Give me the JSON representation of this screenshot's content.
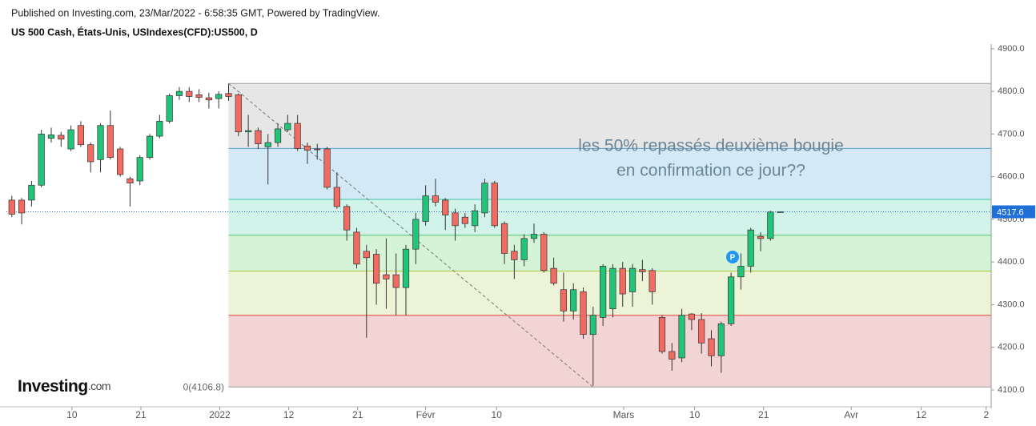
{
  "header": {
    "published": "Published on Investing.com, 23/Mar/2022 - 6:58:35 GMT, Powered by TradingView.",
    "instrument": "US 500 Cash, États-Unis, USIndexes(CFD):US500, D",
    "logo": "Investing",
    "logo_suffix": ".com"
  },
  "chart_data": {
    "type": "candlestick",
    "open": [
      4545,
      4545,
      4545,
      4580,
      4690,
      4697,
      4665,
      4720,
      4675,
      4640,
      4720,
      4665,
      4595,
      4590,
      4645,
      4695,
      4730,
      4790,
      4800,
      4792,
      4785,
      4783,
      4795,
      4792,
      4705,
      4708,
      4670,
      4680,
      4710,
      4725,
      4672,
      4665,
      4665,
      4575,
      4530,
      4470,
      4425,
      4418,
      4370,
      4370,
      4340,
      4430,
      4495,
      4555,
      4545,
      4515,
      4505,
      4485,
      4515,
      4585,
      4490,
      4425,
      4405,
      4455,
      4465,
      4385,
      4335,
      4285,
      4330,
      4230,
      4270,
      4290,
      4385,
      4330,
      4382,
      4380,
      4270,
      4190,
      4175,
      4278,
      4265,
      4220,
      4180,
      4255,
      4365,
      4390,
      4460,
      4455,
      4517.6
    ],
    "high": [
      4555,
      4550,
      4590,
      4710,
      4715,
      4705,
      4720,
      4730,
      4680,
      4725,
      4755,
      4670,
      4600,
      4650,
      4700,
      4745,
      4795,
      4810,
      4810,
      4805,
      4797,
      4800,
      4818,
      4795,
      4745,
      4715,
      4700,
      4725,
      4745,
      4745,
      4680,
      4677,
      4670,
      4610,
      4535,
      4480,
      4440,
      4430,
      4455,
      4420,
      4440,
      4515,
      4580,
      4595,
      4550,
      4525,
      4515,
      4535,
      4595,
      4590,
      4495,
      4440,
      4465,
      4490,
      4470,
      4410,
      4375,
      4350,
      4340,
      4295,
      4395,
      4395,
      4400,
      4395,
      4405,
      4385,
      4275,
      4210,
      4290,
      4280,
      4280,
      4240,
      4260,
      4375,
      4420,
      4480,
      4470,
      4520,
      4517.6
    ],
    "low": [
      4505,
      4488,
      4530,
      4575,
      4680,
      4670,
      4660,
      4670,
      4610,
      4610,
      4640,
      4600,
      4530,
      4580,
      4640,
      4690,
      4725,
      4780,
      4775,
      4775,
      4760,
      4760,
      4778,
      4695,
      4670,
      4665,
      4582,
      4670,
      4705,
      4660,
      4630,
      4640,
      4570,
      4525,
      4450,
      4385,
      4222,
      4300,
      4290,
      4275,
      4275,
      4395,
      4485,
      4530,
      4475,
      4450,
      4480,
      4470,
      4505,
      4480,
      4395,
      4360,
      4390,
      4445,
      4375,
      4345,
      4260,
      4265,
      4220,
      4110,
      4250,
      4270,
      4295,
      4295,
      4355,
      4300,
      4185,
      4145,
      4165,
      4240,
      4185,
      4155,
      4140,
      4250,
      4335,
      4375,
      4425,
      4450,
      4517.6
    ],
    "close": [
      4512,
      4515,
      4580,
      4700,
      4698,
      4688,
      4710,
      4675,
      4635,
      4720,
      4645,
      4605,
      4585,
      4645,
      4695,
      4730,
      4790,
      4800,
      4788,
      4786,
      4780,
      4793,
      4788,
      4705,
      4708,
      4677,
      4680,
      4712,
      4725,
      4666,
      4662,
      4663,
      4575,
      4530,
      4475,
      4395,
      4410,
      4350,
      4360,
      4340,
      4430,
      4500,
      4555,
      4540,
      4510,
      4485,
      4490,
      4520,
      4585,
      4485,
      4420,
      4405,
      4455,
      4465,
      4380,
      4350,
      4285,
      4335,
      4230,
      4275,
      4390,
      4385,
      4325,
      4385,
      4377,
      4330,
      4190,
      4172,
      4275,
      4265,
      4210,
      4180,
      4255,
      4365,
      4390,
      4475,
      4455,
      4517,
      4517.6
    ],
    "up_color": "#22c47a",
    "down_color": "#f26b62",
    "xlim": [
      -1.2,
      99.4
    ],
    "xticks": [
      {
        "value": 6.1,
        "label": "10"
      },
      {
        "value": 13.1,
        "label": "21"
      },
      {
        "value": 21.1,
        "label": "2022"
      },
      {
        "value": 28.1,
        "label": "12"
      },
      {
        "value": 35.1,
        "label": "21"
      },
      {
        "value": 42.0,
        "label": "Févr"
      },
      {
        "value": 49.2,
        "label": "10"
      },
      {
        "value": 62.1,
        "label": "Mars"
      },
      {
        "value": 69.3,
        "label": "10"
      },
      {
        "value": 76.3,
        "label": "21"
      },
      {
        "value": 85.2,
        "label": "Avr"
      },
      {
        "value": 92.3,
        "label": "12"
      },
      {
        "value": 98.9,
        "label": "2"
      }
    ],
    "ylim": [
      4066,
      4911
    ],
    "yticks": [
      {
        "value": 4100,
        "label": "4100.0"
      },
      {
        "value": 4200,
        "label": "4200.0"
      },
      {
        "value": 4300,
        "label": "4300.0"
      },
      {
        "value": 4400,
        "label": "4400.0"
      },
      {
        "value": 4500,
        "label": "4500.0"
      },
      {
        "value": 4600,
        "label": "4600.0"
      },
      {
        "value": 4700,
        "label": "4700.0"
      },
      {
        "value": 4800,
        "label": "4800.0"
      },
      {
        "value": 4900,
        "label": "4900.0"
      }
    ],
    "last_price": 4517.6,
    "fib": {
      "levels": [
        4106.8,
        4274.8,
        4378.7,
        4462.7,
        4546.7,
        4666.3,
        4818.6
      ],
      "line_colors": [
        "#9e9e9e",
        "#e0463c",
        "#a8cc3a",
        "#4cc46a",
        "#3fc7a6",
        "#4f9fd0",
        "#9e9e9e"
      ],
      "band_colors": [
        "#f3d4d4",
        "#edf3d6",
        "#d5f3d7",
        "#d2f3e9",
        "#d3e9f6",
        "#e6e6e6"
      ],
      "start": 22,
      "label": "0(4106.8)"
    },
    "trendline": {
      "x": [
        22,
        59
      ],
      "y": [
        4818.6,
        4106.8
      ]
    },
    "annotation": [
      "les 50% repassés deuxième bougie",
      "en confirmation ce jour??"
    ]
  }
}
